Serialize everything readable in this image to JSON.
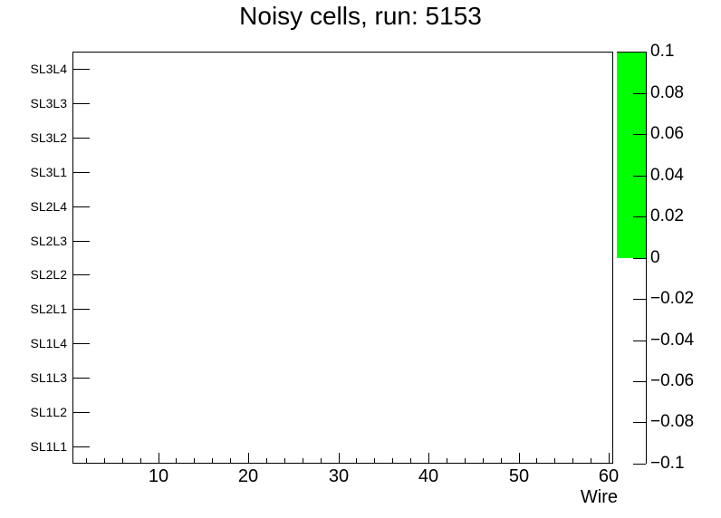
{
  "title": "Noisy cells, run: 5153",
  "colors": {
    "background": "#ffffff",
    "frame_stroke": "#000000",
    "text": "#000000",
    "palette_fill": "#00ff00"
  },
  "chart_data": {
    "type": "heatmap",
    "title": "Noisy cells, run: 5153",
    "xlabel": "Wire",
    "ylabel": "",
    "x_range": [
      0.5,
      60.5
    ],
    "x_major_ticks": [
      10,
      20,
      30,
      40,
      50,
      60
    ],
    "x_major_tick_labels": [
      "10",
      "20",
      "30",
      "40",
      "50",
      "60"
    ],
    "x_minor_tick_step": 2,
    "y_categories_top_to_bottom": [
      "SL3L4",
      "SL3L3",
      "SL3L2",
      "SL3L1",
      "SL2L4",
      "SL2L3",
      "SL2L2",
      "SL2L1",
      "SL1L4",
      "SL1L3",
      "SL1L2",
      "SL1L1"
    ],
    "z_axis": {
      "range": [
        -0.1,
        0.1
      ],
      "tick_values": [
        0.1,
        0.08,
        0.06,
        0.04,
        0.02,
        0,
        -0.02,
        -0.04,
        -0.06,
        -0.08,
        -0.1
      ],
      "tick_labels": [
        "0.1",
        "0.08",
        "0.06",
        "0.04",
        "0.02",
        "0",
        "−0.02",
        "−0.04",
        "−0.06",
        "−0.08",
        "−0.1"
      ],
      "palette_bands": [
        {
          "from": 0,
          "to": 0.1,
          "color": "#00ff00"
        }
      ]
    },
    "cells": [],
    "grid": false,
    "legend": "none"
  }
}
